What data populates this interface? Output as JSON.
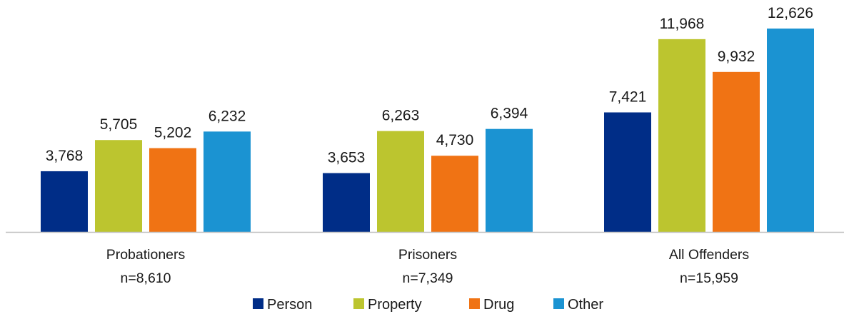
{
  "chart_data": {
    "type": "bar",
    "title": "",
    "xlabel": "",
    "ylabel": "",
    "ylim": [
      0,
      13500
    ],
    "grid": false,
    "legend_position": "bottom",
    "categories": [
      "Probationers",
      "Prisoners",
      "All Offenders"
    ],
    "category_sublabels": [
      "n=8,610",
      "n=7,349",
      "n=15,959"
    ],
    "series": [
      {
        "name": "Person",
        "color": "#002D87",
        "values": [
          3768,
          3653,
          7421
        ],
        "labels": [
          "3,768",
          "3,653",
          "7,421"
        ]
      },
      {
        "name": "Property",
        "color": "#BCC52F",
        "values": [
          5705,
          6263,
          11968
        ],
        "labels": [
          "5,705",
          "6,263",
          "11,968"
        ]
      },
      {
        "name": "Drug",
        "color": "#F07314",
        "values": [
          5202,
          4730,
          9932
        ],
        "labels": [
          "5,202",
          "4,730",
          "9,932"
        ]
      },
      {
        "name": "Other",
        "color": "#1B93D2",
        "values": [
          6232,
          6394,
          12626
        ],
        "labels": [
          "6,232",
          "6,394",
          "12,626"
        ]
      }
    ]
  }
}
